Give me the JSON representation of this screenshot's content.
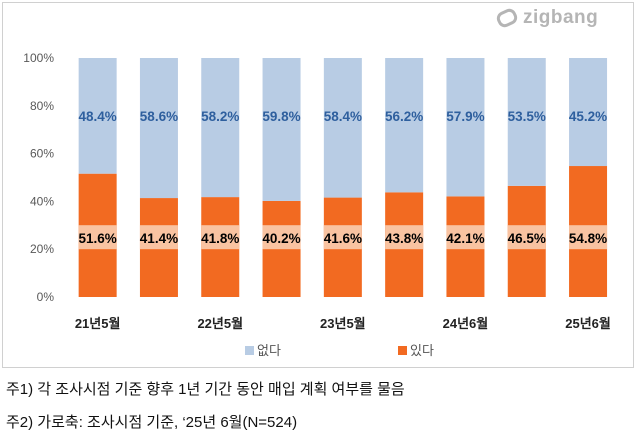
{
  "logo": {
    "text": "zigbang"
  },
  "chart_data": {
    "type": "bar",
    "stacked": true,
    "percent": true,
    "categories": [
      "21년5월",
      "",
      "22년5월",
      "",
      "23년5월",
      "",
      "24년6월",
      "",
      "25년6월"
    ],
    "series": [
      {
        "name": "있다",
        "color": "#f26a21",
        "values": [
          51.6,
          41.4,
          41.8,
          40.2,
          41.6,
          43.8,
          42.1,
          46.5,
          54.8
        ]
      },
      {
        "name": "없다",
        "color": "#b8cce4",
        "values": [
          48.4,
          58.6,
          58.2,
          59.8,
          58.4,
          56.2,
          57.9,
          53.5,
          45.2
        ]
      }
    ],
    "yticks": [
      "0%",
      "20%",
      "40%",
      "60%",
      "80%",
      "100%"
    ],
    "ylim": [
      0,
      100
    ],
    "grid": false,
    "legend": "bottom"
  },
  "notes": [
    "주1) 각 조사시점 기준 향후 1년 기간 동안 매입 계획 여부를 물음",
    "주2) 가로축: 조사시점 기준, ‘25년 6월(N=524)"
  ]
}
